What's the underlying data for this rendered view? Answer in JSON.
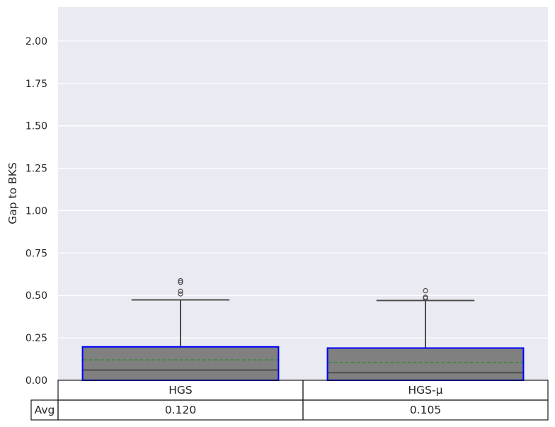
{
  "chart_data": {
    "type": "box",
    "ylabel": "Gap to BKS",
    "ylim": [
      0,
      2.2
    ],
    "yticks": [
      "0.00",
      "0.25",
      "0.50",
      "0.75",
      "1.00",
      "1.25",
      "1.50",
      "1.75",
      "2.00"
    ],
    "grid": true,
    "categories": [
      "HGS",
      "HGS-μ"
    ],
    "boxes": [
      {
        "name": "HGS",
        "q1": 0.0,
        "median": 0.06,
        "q3": 0.197,
        "mean": 0.12,
        "whisker_low": 0.0,
        "whisker_high": 0.474,
        "outliers": [
          0.509,
          0.525,
          0.577,
          0.587
        ]
      },
      {
        "name": "HGS-μ",
        "q1": 0.0,
        "median": 0.045,
        "q3": 0.19,
        "mean": 0.105,
        "whisker_low": 0.0,
        "whisker_high": 0.47,
        "outliers": [
          0.484,
          0.49,
          0.528
        ]
      }
    ],
    "table": {
      "row_label": "Avg",
      "values": [
        "0.120",
        "0.105"
      ]
    },
    "colors": {
      "plot_bg": "#eaeaf2",
      "grid": "#ffffff",
      "box_fill": "#808080",
      "box_edge": "#0000ff",
      "median": "#4d4d4d",
      "mean": "#2e8b2e",
      "whisker": "#4d4d4d"
    }
  }
}
